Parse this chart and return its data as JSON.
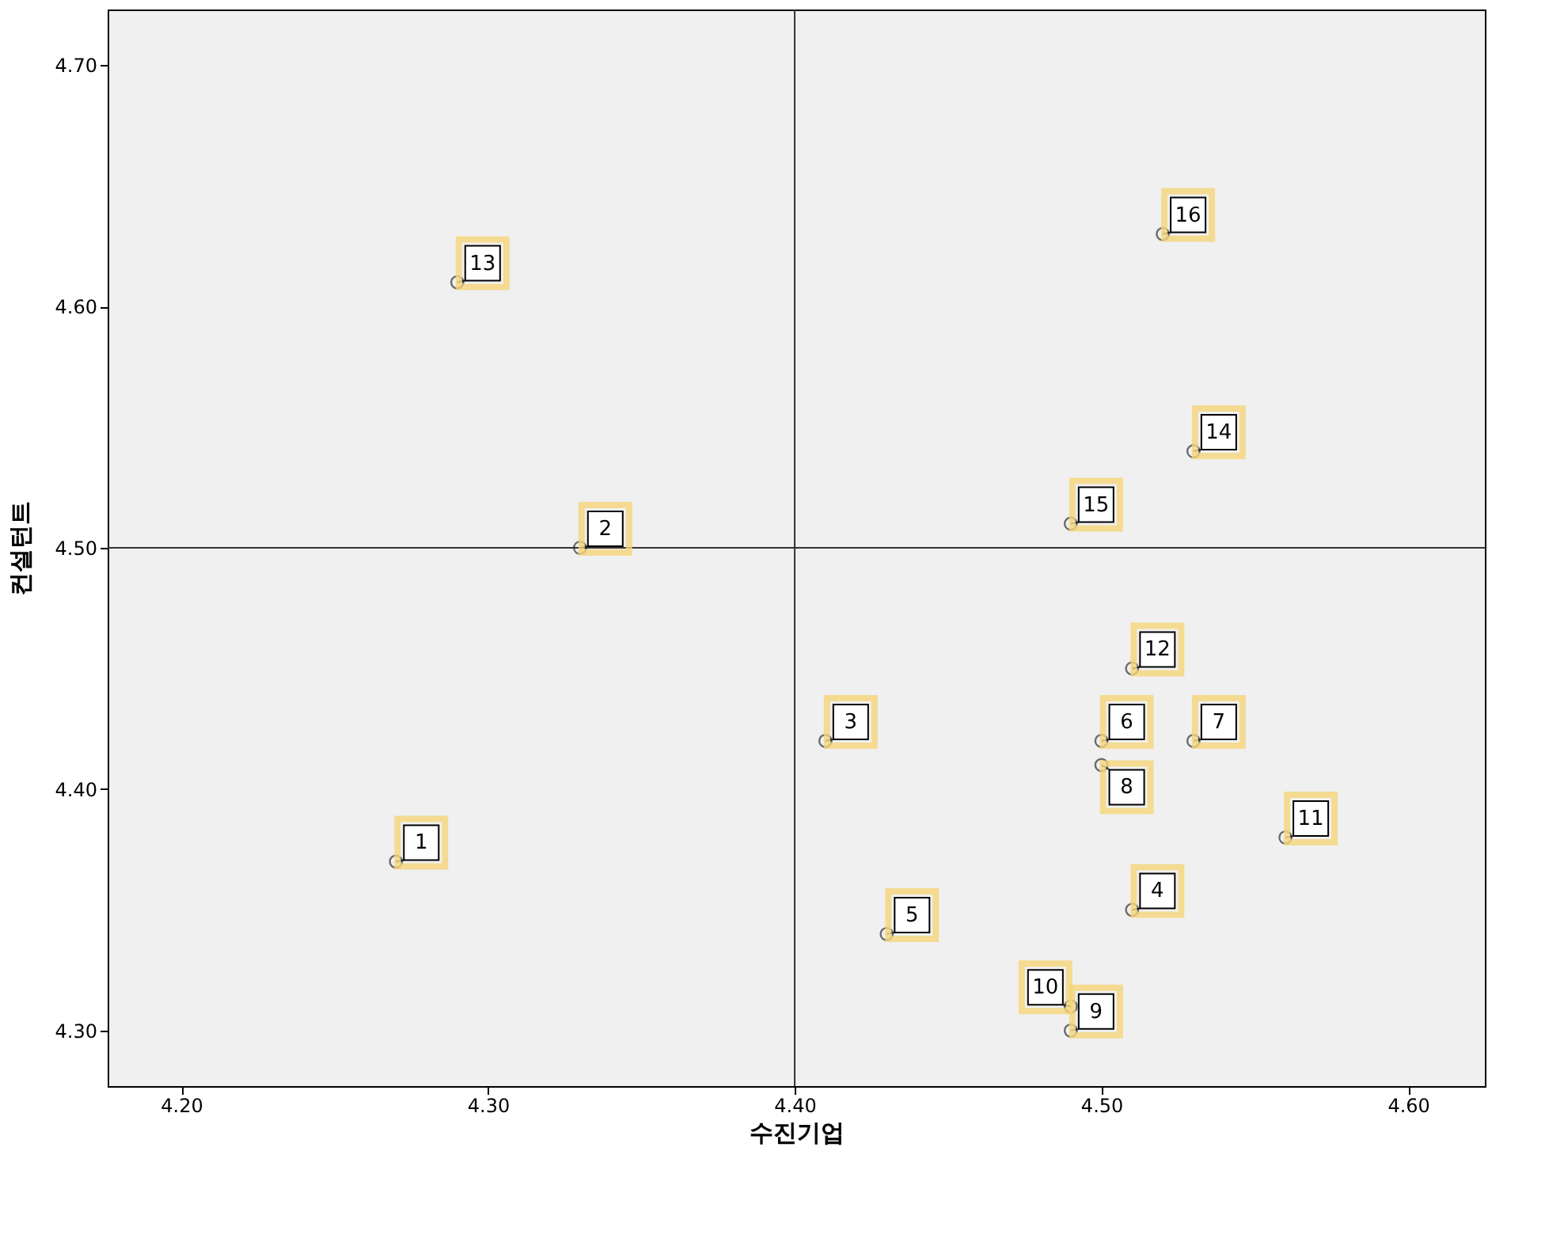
{
  "chart_data": {
    "type": "scatter",
    "xlabel": "수진기업",
    "ylabel": "컨설턴트",
    "x": [
      4.27,
      4.33,
      4.41,
      4.51,
      4.43,
      4.5,
      4.53,
      4.5,
      4.49,
      4.49,
      4.56,
      4.51,
      4.29,
      4.53,
      4.49,
      4.52
    ],
    "series": [
      {
        "color": "#333333",
        "values": [
          4.37,
          4.5,
          4.42,
          4.35,
          4.34,
          4.42,
          4.42,
          4.41,
          4.3,
          4.31,
          4.38,
          4.45,
          4.61,
          4.54,
          4.51,
          4.63
        ]
      }
    ],
    "xlim": [
      4.176,
      4.625
    ],
    "ylim": [
      4.277,
      4.723
    ],
    "xticks": [
      {
        "value": 4.2,
        "label": "4.20"
      },
      {
        "value": 4.3,
        "label": "4.30"
      },
      {
        "value": 4.4,
        "label": "4.40"
      },
      {
        "value": 4.5,
        "label": "4.50"
      },
      {
        "value": 4.6,
        "label": "4.60"
      }
    ],
    "yticks": [
      {
        "value": 4.3,
        "label": "4.30"
      },
      {
        "value": 4.4,
        "label": "4.40"
      },
      {
        "value": 4.5,
        "label": "4.50"
      },
      {
        "value": 4.6,
        "label": "4.60"
      },
      {
        "value": 4.7,
        "label": "4.70"
      }
    ],
    "ref_lines": [
      {
        "axis": "x",
        "value": 4.4,
        "color": "#333333"
      },
      {
        "axis": "y",
        "value": 4.5,
        "color": "#333333"
      }
    ],
    "annotations": [
      {
        "text": "1",
        "x": 4.27,
        "y": 4.37
      },
      {
        "text": "2",
        "x": 4.33,
        "y": 4.5
      },
      {
        "text": "3",
        "x": 4.41,
        "y": 4.42
      },
      {
        "text": "4",
        "x": 4.51,
        "y": 4.35
      },
      {
        "text": "5",
        "x": 4.43,
        "y": 4.34
      },
      {
        "text": "6",
        "x": 4.5,
        "y": 4.42
      },
      {
        "text": "7",
        "x": 4.53,
        "y": 4.42
      },
      {
        "text": "8",
        "x": 4.5,
        "y": 4.41
      },
      {
        "text": "9",
        "x": 4.49,
        "y": 4.3
      },
      {
        "text": "10",
        "x": 4.49,
        "y": 4.31
      },
      {
        "text": "11",
        "x": 4.56,
        "y": 4.38
      },
      {
        "text": "12",
        "x": 4.51,
        "y": 4.45
      },
      {
        "text": "13",
        "x": 4.29,
        "y": 4.61
      },
      {
        "text": "14",
        "x": 4.53,
        "y": 4.54
      },
      {
        "text": "15",
        "x": 4.49,
        "y": 4.51
      },
      {
        "text": "16",
        "x": 4.52,
        "y": 4.63
      }
    ],
    "marker": "circle",
    "grid": false
  }
}
